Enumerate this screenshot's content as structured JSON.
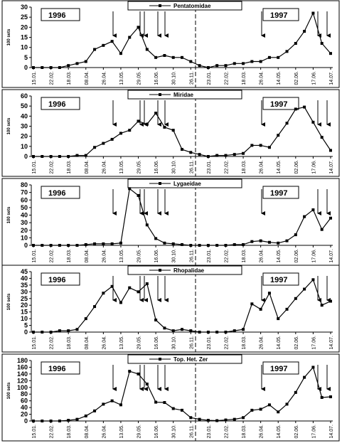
{
  "chart_data": [
    {
      "type": "line",
      "ylabel": "100 sets",
      "annotations": [
        "1996",
        "1997"
      ],
      "categories": [
        "15.01.",
        null,
        "22.02.",
        null,
        "18.03.",
        null,
        "08.04.",
        null,
        "26.04.",
        null,
        "13.05.",
        null,
        "29.05.",
        null,
        "16.06.",
        null,
        "30.10.",
        null,
        "26.11.",
        null,
        "23.01.",
        null,
        "22.02.",
        null,
        "18.03.",
        null,
        "26.04.",
        null,
        "14.05.",
        null,
        "02.06.",
        null,
        "17.06.",
        null,
        "14.07."
      ],
      "series": [
        {
          "name": "Pentatomidae",
          "color": "#000000",
          "values": [
            0,
            0,
            0,
            0,
            1,
            2,
            3,
            9,
            11,
            13,
            7,
            15,
            20,
            9,
            5,
            6,
            5,
            5,
            3,
            1,
            0,
            1,
            1,
            2,
            2,
            3,
            3,
            5,
            5,
            8,
            12,
            18,
            27,
            12,
            7
          ]
        }
      ],
      "ylim": [
        0,
        30
      ],
      "yticks": [
        0,
        5,
        10,
        15,
        20,
        25,
        30
      ]
    },
    {
      "type": "line",
      "ylabel": "100 sets",
      "annotations": [
        "1996",
        "1997"
      ],
      "categories": [
        "15.01.",
        null,
        "22.02.",
        null,
        "18.03.",
        null,
        "08.04.",
        null,
        "26.04.",
        null,
        "13.05.",
        null,
        "29.05.",
        null,
        "16.06.",
        null,
        "30.10.",
        null,
        "26.11.",
        null,
        "23.01.",
        null,
        "22.02.",
        null,
        "18.03.",
        null,
        "26.04.",
        null,
        "14.05.",
        null,
        "02.06.",
        null,
        "17.06.",
        null,
        "14.07."
      ],
      "series": [
        {
          "name": "Miridae",
          "color": "#000000",
          "values": [
            0,
            0,
            0,
            0,
            0,
            1,
            1,
            9,
            13,
            17,
            23,
            26,
            35,
            32,
            43,
            29,
            26,
            7,
            4,
            2,
            0,
            1,
            1,
            2,
            3,
            11,
            11,
            9,
            21,
            33,
            47,
            49,
            34,
            19,
            6
          ]
        }
      ],
      "ylim": [
        0,
        60
      ],
      "yticks": [
        0,
        10,
        20,
        30,
        40,
        50,
        60
      ]
    },
    {
      "type": "line",
      "ylabel": "100 sets",
      "annotations": [
        "1996",
        "1997"
      ],
      "categories": [
        "15.01.",
        null,
        "22.02.",
        null,
        "18.03.",
        null,
        "08.04.",
        null,
        "26.04.",
        null,
        "13.05.",
        null,
        "29.05.",
        null,
        "16.06.",
        null,
        "30.10.",
        null,
        "26.11.",
        null,
        "23.01.",
        null,
        "22.02.",
        null,
        "18.03.",
        null,
        "26.04.",
        null,
        "14.05.",
        null,
        "02.06.",
        null,
        "17.06.",
        null,
        "14.07."
      ],
      "series": [
        {
          "name": "Lygaeidae",
          "color": "#000000",
          "values": [
            0,
            0,
            0,
            0,
            0,
            0,
            1,
            2,
            2,
            2,
            3,
            75,
            66,
            27,
            9,
            3,
            2,
            1,
            0,
            0,
            0,
            0,
            0,
            1,
            1,
            5,
            6,
            4,
            3,
            6,
            14,
            38,
            47,
            21,
            36
          ]
        }
      ],
      "ylim": [
        0,
        80
      ],
      "yticks": [
        0,
        10,
        20,
        30,
        40,
        50,
        60,
        70,
        80
      ]
    },
    {
      "type": "line",
      "ylabel": "100 sets",
      "annotations": [
        "1996",
        "1997"
      ],
      "categories": [
        "15.01.",
        null,
        "22.02.",
        null,
        "18.03.",
        null,
        "08.04.",
        null,
        "26.04.",
        null,
        "13.05.",
        null,
        "29.05.",
        null,
        "16.06.",
        null,
        "30.10.",
        null,
        "26.11.",
        null,
        "23.01.",
        null,
        "22.02.",
        null,
        "18.03.",
        null,
        "26.04.",
        null,
        "14.05.",
        null,
        "02.06.",
        null,
        "17.06.",
        null,
        "14.07."
      ],
      "series": [
        {
          "name": "Rhopalidae",
          "color": "#000000",
          "values": [
            0,
            0,
            0,
            1,
            1,
            2,
            10,
            19,
            29,
            34,
            22,
            33,
            30,
            36,
            9,
            3,
            1,
            2,
            1,
            0,
            0,
            0,
            0,
            1,
            2,
            21,
            17,
            29,
            10,
            17,
            25,
            32,
            39,
            20,
            23
          ]
        }
      ],
      "ylim": [
        0,
        45
      ],
      "yticks": [
        0,
        5,
        10,
        15,
        20,
        25,
        30,
        35,
        40,
        45
      ]
    },
    {
      "type": "line",
      "ylabel": "100 sets",
      "annotations": [
        "1996",
        "1997"
      ],
      "categories": [
        "15.01.",
        null,
        "22.02.",
        null,
        "18.03.",
        null,
        "08.04.",
        null,
        "26.04.",
        null,
        "13.05.",
        null,
        "29.05.",
        null,
        "16.06.",
        null,
        "30.10.",
        null,
        "26.11.",
        null,
        "23.01.",
        null,
        "22.02.",
        null,
        "18.03.",
        null,
        "26.04.",
        null,
        "14.05.",
        null,
        "02.06.",
        null,
        "17.06.",
        null,
        "14.07."
      ],
      "series": [
        {
          "name": "Top. Het. Zer",
          "color": "#000000",
          "values": [
            0,
            0,
            0,
            0,
            2,
            5,
            15,
            30,
            50,
            60,
            48,
            148,
            140,
            110,
            56,
            55,
            37,
            32,
            10,
            5,
            2,
            1,
            3,
            5,
            10,
            32,
            35,
            48,
            27,
            50,
            85,
            130,
            160,
            70,
            72
          ]
        }
      ],
      "ylim": [
        0,
        180
      ],
      "yticks": [
        0,
        20,
        40,
        60,
        80,
        100,
        120,
        140,
        160,
        180
      ]
    }
  ]
}
